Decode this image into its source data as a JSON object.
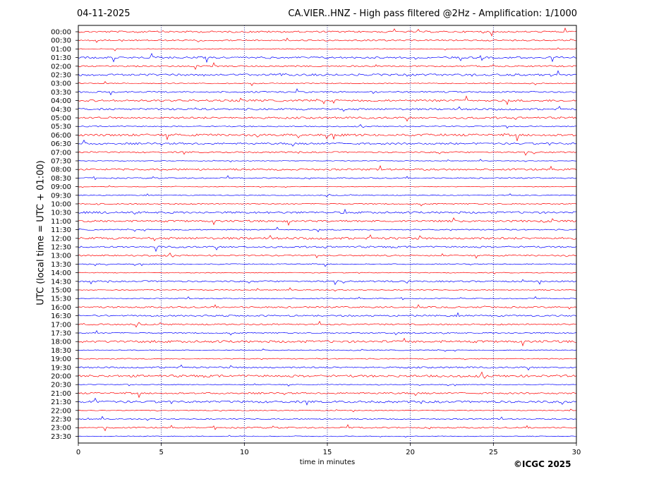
{
  "header": {
    "date": "04-11-2025",
    "title": "CA.VIER..HNZ - High pass filtered @2Hz - Amplification: 1/1000"
  },
  "footer": {
    "copyright": "©ICGC 2025"
  },
  "colors": {
    "red_trace": "#ff0000",
    "blue_trace": "#0000ff",
    "grid": "#000080"
  },
  "chart_data": {
    "type": "line",
    "xlabel": "time in minutes",
    "ylabel": "UTC (local time = UTC + 01:00)",
    "xlim": [
      0,
      30
    ],
    "x_ticks": [
      "0",
      "5",
      "10",
      "15",
      "20",
      "25",
      "30"
    ],
    "row_labels": [
      "00:00",
      "00:30",
      "01:00",
      "01:30",
      "02:00",
      "02:30",
      "03:00",
      "03:30",
      "04:00",
      "04:30",
      "05:00",
      "05:30",
      "06:00",
      "06:30",
      "07:00",
      "07:30",
      "08:00",
      "08:30",
      "09:00",
      "09:30",
      "10:00",
      "10:30",
      "11:00",
      "11:30",
      "12:00",
      "12:30",
      "13:00",
      "13:30",
      "14:00",
      "14:30",
      "15:00",
      "15:30",
      "16:00",
      "16:30",
      "17:00",
      "17:30",
      "18:00",
      "18:30",
      "19:00",
      "19:30",
      "20:00",
      "20:30",
      "21:00",
      "21:30",
      "22:00",
      "22:30",
      "23:00",
      "23:30"
    ],
    "row_colors": [
      "red",
      "red",
      "red",
      "blue",
      "red",
      "blue",
      "red",
      "blue",
      "red",
      "blue",
      "red",
      "blue",
      "red",
      "blue",
      "red",
      "blue",
      "red",
      "blue",
      "red",
      "blue",
      "red",
      "blue",
      "red",
      "blue",
      "red",
      "blue",
      "red",
      "blue",
      "red",
      "blue",
      "red",
      "blue",
      "red",
      "blue",
      "red",
      "blue",
      "red",
      "blue",
      "red",
      "blue",
      "red",
      "blue",
      "red",
      "blue",
      "red",
      "blue",
      "red",
      "blue"
    ],
    "vertical_grid_minutes": [
      5,
      10,
      15,
      20,
      25
    ],
    "grid": true
  }
}
